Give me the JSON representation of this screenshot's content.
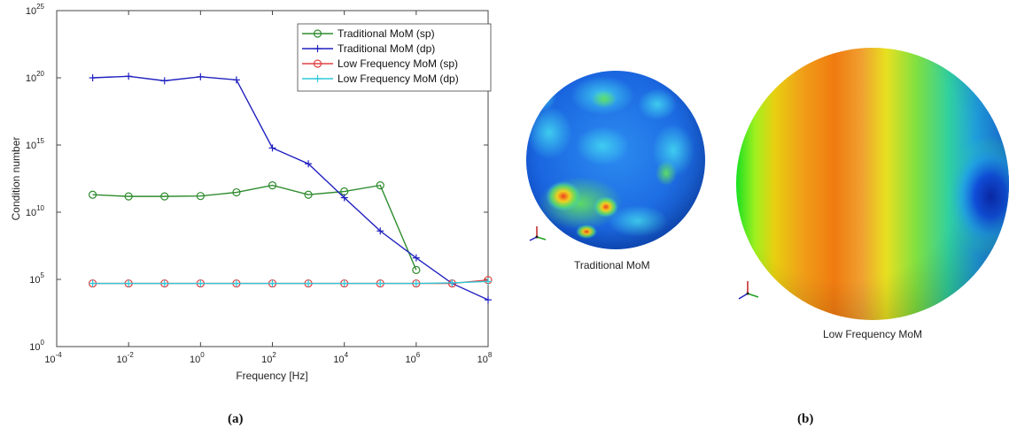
{
  "chart_data": {
    "type": "line",
    "xlabel": "Frequency [Hz]",
    "ylabel": "Condition number",
    "xscale": "log",
    "yscale": "log",
    "xlim": [
      0.0001,
      100000000
    ],
    "ylim": [
      1,
      1e+25
    ],
    "x_tick_exponents": [
      "-4",
      "-2",
      "0",
      "2",
      "4",
      "6",
      "8"
    ],
    "y_tick_exponents": [
      "0",
      "5",
      "10",
      "15",
      "20",
      "25"
    ],
    "tick_base": "10",
    "legend_position": "top-right",
    "grid": false,
    "series": [
      {
        "name": "Traditional MoM (sp)",
        "color": "#2e8b2e",
        "marker": "circle",
        "x": [
          0.001,
          0.01,
          0.1,
          1,
          10,
          100,
          1000,
          10000,
          100000,
          1000000
        ],
        "y": [
          200000000000.0,
          150000000000.0,
          150000000000.0,
          160000000000.0,
          300000000000.0,
          1000000000000.0,
          200000000000.0,
          350000000000.0,
          1000000000000.0,
          500000.0
        ]
      },
      {
        "name": "Traditional MoM (dp)",
        "color": "#2020c0",
        "marker": "plus",
        "x": [
          0.001,
          0.01,
          0.1,
          1,
          10,
          100,
          1000,
          10000,
          100000,
          1000000,
          10000000,
          100000000
        ],
        "y": [
          1e+20,
          1.3e+20,
          6e+19,
          1.2e+20,
          7e+19,
          600000000000000.0,
          40000000000000.0,
          120000000000.0,
          400000000.0,
          4000000.0,
          50000.0,
          3000.0
        ]
      },
      {
        "name": "Low Frequency MoM (sp)",
        "color": "#e04040",
        "marker": "circle",
        "x": [
          0.001,
          0.01,
          0.1,
          1,
          10,
          100,
          1000,
          10000,
          100000,
          1000000,
          10000000,
          100000000
        ],
        "y": [
          50000.0,
          50000.0,
          50000.0,
          50000.0,
          50000.0,
          50000.0,
          50000.0,
          50000.0,
          50000.0,
          50000.0,
          50000.0,
          90000.0
        ]
      },
      {
        "name": "Low Frequency MoM (dp)",
        "color": "#30c8d8",
        "marker": "plus",
        "x": [
          0.001,
          0.01,
          0.1,
          1,
          10,
          100,
          1000,
          10000,
          100000,
          1000000,
          10000000,
          100000000
        ],
        "y": [
          50000.0,
          50000.0,
          50000.0,
          50000.0,
          50000.0,
          50000.0,
          50000.0,
          50000.0,
          50000.0,
          50000.0,
          55000.0,
          70000.0
        ]
      }
    ]
  },
  "panel_a_label": "(a)",
  "panel_b_label": "(b)",
  "caption_traditional": "Traditional MoM",
  "caption_low_frequency": "Low Frequency MoM",
  "sphere_colors": {
    "blue": "#1060e0",
    "cyan": "#30b8f0",
    "green": "#30d060",
    "yellow": "#e8e020",
    "orange": "#f0901a",
    "red": "#e83010",
    "deep_blue": "#0a2ab0"
  }
}
